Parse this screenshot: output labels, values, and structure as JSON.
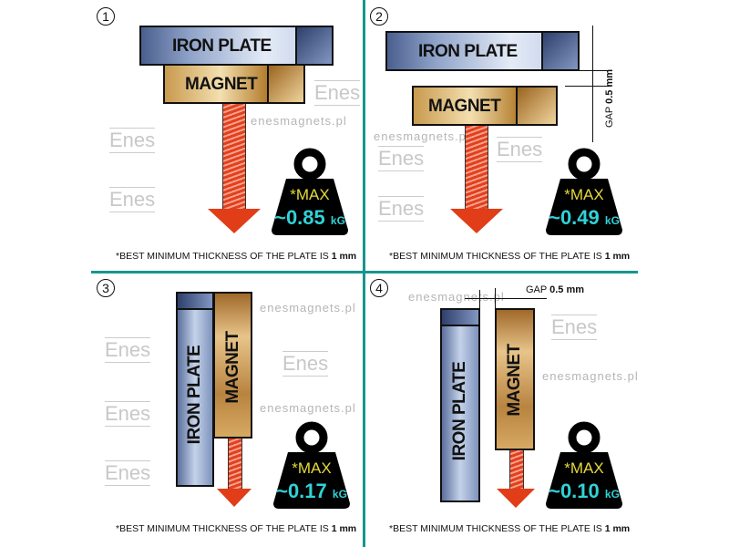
{
  "panels": [
    {
      "number": "1",
      "iron_label": "IRON PLATE",
      "magnet_label": "MAGNET",
      "weight": {
        "max_label": "*MAX",
        "value": "~0.85",
        "unit": "kG"
      },
      "footnote": {
        "text": "*BEST MINIMUM THICKNESS OF THE PLATE IS ",
        "value": "1 mm"
      }
    },
    {
      "number": "2",
      "iron_label": "IRON PLATE",
      "magnet_label": "MAGNET",
      "gap": {
        "label": "GAP",
        "value": "0.5 mm"
      },
      "weight": {
        "max_label": "*MAX",
        "value": "~0.49",
        "unit": "kG"
      },
      "footnote": {
        "text": "*BEST MINIMUM THICKNESS OF THE PLATE IS ",
        "value": "1 mm"
      }
    },
    {
      "number": "3",
      "iron_label": "IRON  PLATE",
      "magnet_label": "MAGNET",
      "weight": {
        "max_label": "*MAX",
        "value": "~0.17",
        "unit": "kG"
      },
      "footnote": {
        "text": "*BEST MINIMUM THICKNESS OF THE PLATE IS ",
        "value": "1 mm"
      }
    },
    {
      "number": "4",
      "iron_label": "IRON PLATE",
      "magnet_label": "MAGNET",
      "gap": {
        "label": "GAP",
        "value": "0.5 mm"
      },
      "weight": {
        "max_label": "*MAX",
        "value": "~0.10",
        "unit": "kG"
      },
      "footnote": {
        "text": "*BEST MINIMUM THICKNESS OF THE PLATE IS ",
        "value": "1 mm"
      }
    }
  ],
  "watermark": {
    "site": "enesmagnets.pl",
    "logo": "Enes"
  },
  "colors": {
    "divider": "#15968f",
    "arrow": "#e03d18",
    "max": "#e6d83a",
    "value": "#2fd3d8"
  }
}
